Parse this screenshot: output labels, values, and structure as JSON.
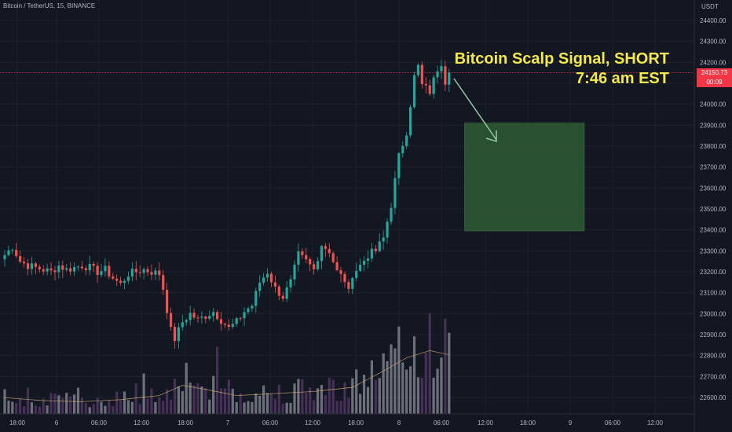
{
  "header": {
    "title": "Bitcoin / TetherUS, 15, BINANCE",
    "currency": "USDT"
  },
  "annotation": {
    "line1": "Bitcoin Scalp Signal, SHORT",
    "line2": "7:46 am EST"
  },
  "price_tag": {
    "price": "24150.73",
    "countdown": "00:09"
  },
  "colors": {
    "up": "#26a69a",
    "down": "#ef5350",
    "box": "#2f5a35",
    "annotation": "#f5e84a",
    "vol_up": "#8b8f99",
    "vol_down": "#5a3a6b",
    "vol_ma": "#c9a46b"
  },
  "chart_data": {
    "type": "candlestick",
    "title": "",
    "y_ticks": [
      "24400.00",
      "24300.00",
      "24200.00",
      "24100.00",
      "24000.00",
      "23900.00",
      "23800.00",
      "23700.00",
      "23600.00",
      "23500.00",
      "23400.00",
      "23300.00",
      "23200.00",
      "23100.00",
      "23000.00",
      "22900.00",
      "22800.00",
      "22700.00",
      "22600.00"
    ],
    "x_ticks": [
      "18:00",
      "6",
      "06:00",
      "12:00",
      "18:00",
      "7",
      "06:00",
      "12:00",
      "18:00",
      "8",
      "06:00",
      "12:00",
      "18:00",
      "9",
      "06:00",
      "12:00"
    ],
    "ylim": [
      22550,
      24480
    ],
    "last_price": 24150.73,
    "close_path": [
      [
        0,
        23280
      ],
      [
        2,
        23320
      ],
      [
        4,
        23250
      ],
      [
        6,
        23230
      ],
      [
        8,
        23220
      ],
      [
        10,
        23210
      ],
      [
        12,
        23200
      ],
      [
        14,
        23230
      ],
      [
        16,
        23210
      ],
      [
        18,
        23220
      ],
      [
        20,
        23230
      ],
      [
        22,
        23220
      ],
      [
        24,
        23200
      ],
      [
        26,
        23210
      ],
      [
        28,
        23170
      ],
      [
        30,
        23140
      ],
      [
        32,
        23190
      ],
      [
        34,
        23200
      ],
      [
        36,
        23210
      ],
      [
        38,
        23200
      ],
      [
        40,
        23190
      ],
      [
        41,
        23120
      ],
      [
        42,
        23020
      ],
      [
        43,
        22920
      ],
      [
        44,
        22880
      ],
      [
        46,
        22960
      ],
      [
        48,
        23000
      ],
      [
        50,
        22970
      ],
      [
        52,
        22990
      ],
      [
        54,
        23010
      ],
      [
        56,
        22970
      ],
      [
        58,
        22930
      ],
      [
        60,
        22960
      ],
      [
        62,
        23010
      ],
      [
        64,
        23040
      ],
      [
        66,
        23150
      ],
      [
        68,
        23200
      ],
      [
        70,
        23120
      ],
      [
        72,
        23080
      ],
      [
        74,
        23150
      ],
      [
        76,
        23280
      ],
      [
        78,
        23250
      ],
      [
        80,
        23210
      ],
      [
        82,
        23330
      ],
      [
        84,
        23300
      ],
      [
        86,
        23200
      ],
      [
        88,
        23160
      ],
      [
        89,
        23100
      ],
      [
        90,
        23190
      ],
      [
        92,
        23230
      ],
      [
        94,
        23280
      ],
      [
        96,
        23300
      ],
      [
        98,
        23360
      ],
      [
        100,
        23520
      ],
      [
        102,
        23750
      ],
      [
        104,
        23870
      ],
      [
        105,
        24000
      ],
      [
        106,
        24130
      ],
      [
        107,
        24180
      ],
      [
        108,
        24090
      ],
      [
        110,
        24060
      ],
      [
        112,
        24170
      ],
      [
        113,
        24200
      ],
      [
        114,
        24110
      ],
      [
        115,
        24150
      ]
    ],
    "volume_ma": [
      [
        0,
        0.16
      ],
      [
        10,
        0.13
      ],
      [
        20,
        0.12
      ],
      [
        30,
        0.14
      ],
      [
        40,
        0.18
      ],
      [
        46,
        0.28
      ],
      [
        52,
        0.24
      ],
      [
        60,
        0.18
      ],
      [
        70,
        0.2
      ],
      [
        80,
        0.22
      ],
      [
        90,
        0.26
      ],
      [
        98,
        0.42
      ],
      [
        104,
        0.55
      ],
      [
        110,
        0.62
      ],
      [
        115,
        0.58
      ]
    ],
    "target_box": {
      "x_start_bar": 119,
      "x_end_bar": 150,
      "price_top": 23910,
      "price_bottom": 23395
    }
  }
}
